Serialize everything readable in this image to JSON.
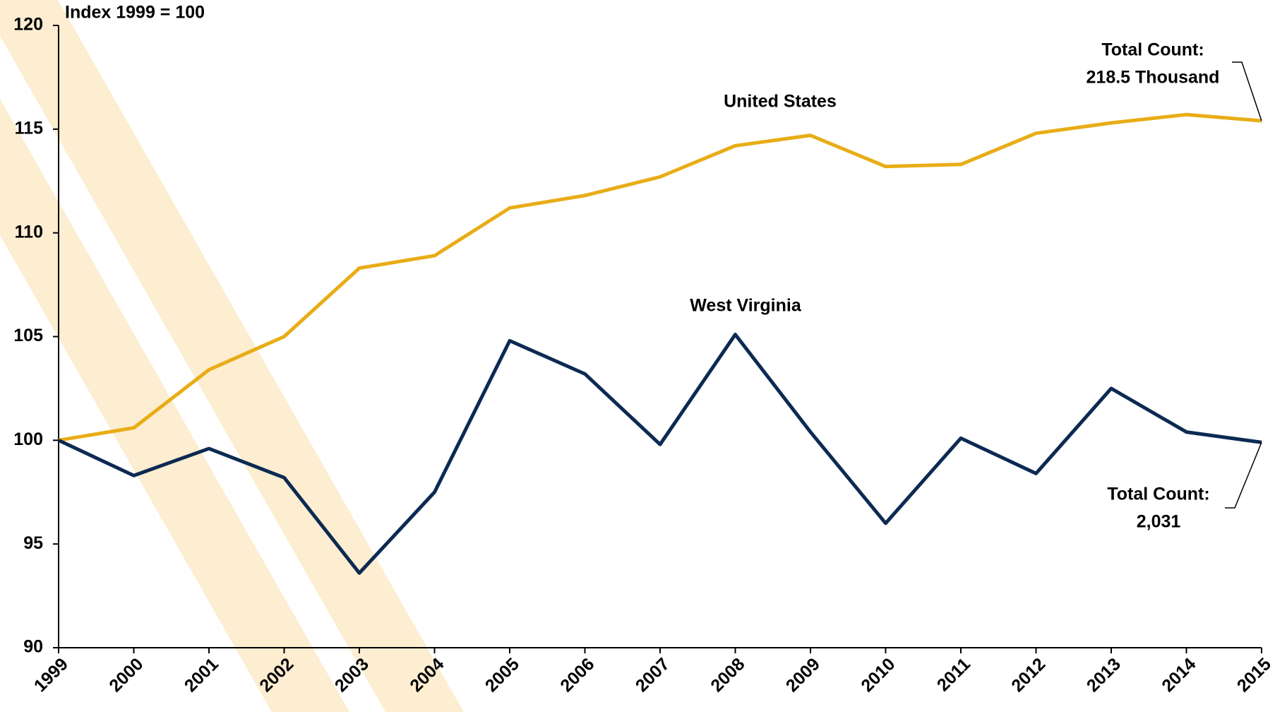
{
  "chart_data": {
    "type": "line",
    "y_label": "Index 1999 = 100",
    "x": [
      1999,
      2000,
      2001,
      2002,
      2003,
      2004,
      2005,
      2006,
      2007,
      2008,
      2009,
      2010,
      2011,
      2012,
      2013,
      2014,
      2015
    ],
    "xlim": [
      1999,
      2015
    ],
    "xticks": [
      1999,
      2000,
      2001,
      2002,
      2003,
      2004,
      2005,
      2006,
      2007,
      2008,
      2009,
      2010,
      2011,
      2012,
      2013,
      2014,
      2015
    ],
    "ylim": [
      90,
      120
    ],
    "yticks": [
      90,
      95,
      100,
      105,
      110,
      115,
      120
    ],
    "grid": false,
    "series": [
      {
        "name": "United States",
        "color": "#e8ad16",
        "values": [
          100,
          100.6,
          103.4,
          105.0,
          108.3,
          108.9,
          111.2,
          111.8,
          112.7,
          114.2,
          114.7,
          113.2,
          113.3,
          114.8,
          115.3,
          115.7,
          115.4
        ]
      },
      {
        "name": "West Virginia",
        "color": "#0c2a52",
        "values": [
          100,
          98.3,
          99.6,
          98.2,
          93.6,
          97.5,
          104.8,
          103.2,
          99.8,
          105.1,
          100.4,
          96.0,
          100.1,
          98.4,
          102.5,
          100.4,
          99.9
        ]
      }
    ],
    "annotations": [
      {
        "lines": [
          "Total Count:",
          "218.5 Thousand"
        ],
        "series": 0
      },
      {
        "lines": [
          "Total Count:",
          "2,031"
        ],
        "series": 1
      }
    ]
  }
}
